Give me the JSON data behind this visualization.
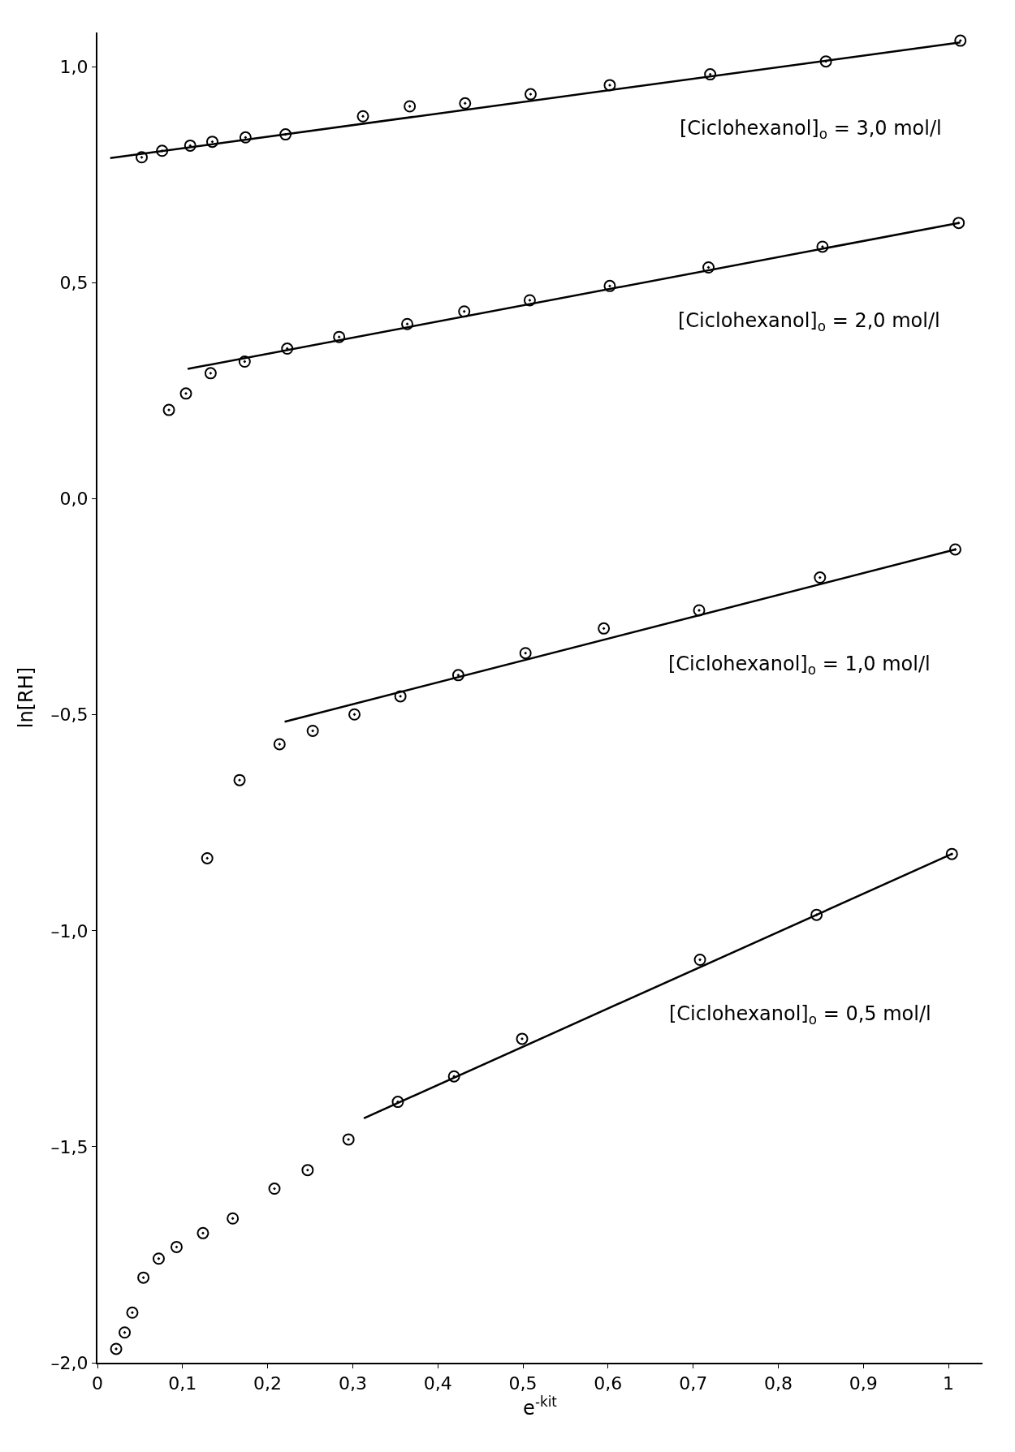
{
  "chart_data": {
    "type": "scatter",
    "xlabel": "e$^{-kit}$",
    "ylabel": "ln[RH]",
    "xlim": [
      0,
      1.04
    ],
    "ylim": [
      -2.0,
      1.08
    ],
    "xticks": [
      0,
      {
        "value": 0.1,
        "label": "0,1"
      },
      {
        "value": 0.2,
        "label": "0,2"
      },
      {
        "value": 0.3,
        "label": "0,3"
      },
      {
        "value": 0.4,
        "label": "0,4"
      },
      {
        "value": 0.5,
        "label": "0,5"
      },
      {
        "value": 0.6,
        "label": "0,6"
      },
      {
        "value": 0.7,
        "label": "0,7"
      },
      {
        "value": 0.8,
        "label": "0,8"
      },
      {
        "value": 0.9,
        "label": "0,9"
      },
      1
    ],
    "yticks": [
      {
        "value": -2.0,
        "label": "–2,0"
      },
      {
        "value": -1.5,
        "label": "–1,5"
      },
      {
        "value": -1.0,
        "label": "–1,0"
      },
      {
        "value": -0.5,
        "label": "–0,5"
      },
      {
        "value": 0.0,
        "label": "0,0"
      },
      {
        "value": 0.5,
        "label": "0,5"
      },
      {
        "value": 1.0,
        "label": "1,0"
      }
    ],
    "legend": false,
    "marker": "circle",
    "series": [
      {
        "name": "[Ciclohexanol]$_{o}$ = 3,0 mol/l",
        "color": "#000000",
        "x": [
          0.052,
          0.076,
          0.109,
          0.135,
          0.174,
          0.221,
          0.312,
          0.367,
          0.432,
          0.509,
          0.602,
          0.72,
          0.856,
          1.014
        ],
        "values": [
          0.791,
          0.806,
          0.818,
          0.827,
          0.837,
          0.844,
          0.886,
          0.909,
          0.916,
          0.937,
          0.958,
          0.983,
          1.013,
          1.061
        ]
      },
      {
        "type": "line",
        "color": "#000000",
        "marker": "none",
        "x": [
          0.015,
          1.014
        ],
        "values": [
          0.789,
          1.057
        ]
      },
      {
        "name": "[Ciclohexanol]$_{o}$ = 2,0 mol/l",
        "color": "#000000",
        "x": [
          0.084,
          0.104,
          0.133,
          0.173,
          0.223,
          0.284,
          0.364,
          0.431,
          0.508,
          0.602,
          0.718,
          0.852,
          1.012
        ],
        "values": [
          0.206,
          0.244,
          0.291,
          0.318,
          0.348,
          0.375,
          0.405,
          0.434,
          0.46,
          0.493,
          0.536,
          0.584,
          0.639
        ]
      },
      {
        "type": "line",
        "color": "#000000",
        "marker": "none",
        "x": [
          0.106,
          1.012
        ],
        "values": [
          0.301,
          0.639
        ]
      },
      {
        "name": "[Ciclohexanol]$_{o}$ = 1,0 mol/l",
        "color": "#000000",
        "x": [
          0.129,
          0.167,
          0.214,
          0.253,
          0.302,
          0.356,
          0.424,
          0.503,
          0.595,
          0.707,
          0.849,
          1.008
        ],
        "values": [
          -0.832,
          -0.651,
          -0.568,
          -0.537,
          -0.499,
          -0.457,
          -0.408,
          -0.357,
          -0.3,
          -0.258,
          -0.182,
          -0.117
        ]
      },
      {
        "type": "line",
        "color": "#000000",
        "marker": "none",
        "x": [
          0.22,
          1.008
        ],
        "values": [
          -0.516,
          -0.117
        ]
      },
      {
        "name": "[Ciclohexanol]$_{o}$ = 0,5 mol/l",
        "color": "#000000",
        "x": [
          0.022,
          0.032,
          0.041,
          0.054,
          0.072,
          0.093,
          0.124,
          0.159,
          0.208,
          0.247,
          0.295,
          0.353,
          0.419,
          0.499,
          0.708,
          0.845,
          1.004
        ],
        "values": [
          -1.968,
          -1.93,
          -1.884,
          -1.803,
          -1.759,
          -1.732,
          -1.7,
          -1.666,
          -1.597,
          -1.554,
          -1.483,
          -1.396,
          -1.337,
          -1.25,
          -1.067,
          -0.963,
          -0.822
        ]
      },
      {
        "type": "line",
        "color": "#000000",
        "marker": "none",
        "x": [
          0.313,
          1.004
        ],
        "values": [
          -1.434,
          -0.822
        ]
      }
    ]
  }
}
